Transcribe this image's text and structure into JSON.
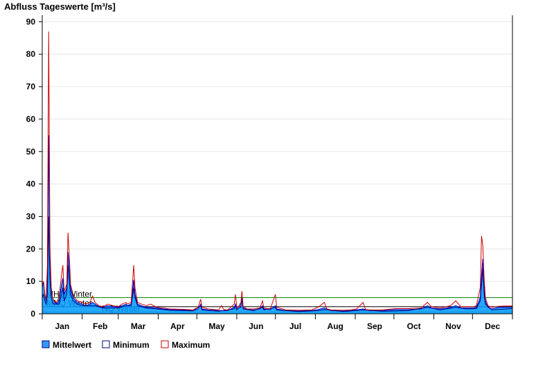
{
  "chart_data": {
    "type": "area",
    "title": "Abfluss Tageswerte [m³/s]",
    "ylim": [
      0,
      92
    ],
    "y_ticks": [
      0,
      10,
      20,
      30,
      40,
      50,
      60,
      70,
      80,
      90
    ],
    "grid": true,
    "x_range_days": [
      1,
      366
    ],
    "month_labels": [
      "Jan",
      "Feb",
      "Mar",
      "Apr",
      "May",
      "Jun",
      "Jul",
      "Aug",
      "Sep",
      "Oct",
      "Nov",
      "Dec"
    ],
    "month_start_days": [
      1,
      32,
      60,
      91,
      121,
      152,
      182,
      213,
      244,
      274,
      305,
      335
    ],
    "reference_lines": [
      {
        "label": "MHQ Winter",
        "value": 5.0,
        "color": "#008000"
      },
      {
        "label": "MNQ Winter",
        "value": 2.2,
        "color": "#000000"
      },
      {
        "label": "NQ Winter",
        "value": 0.5,
        "color": "#008000"
      }
    ],
    "series": [
      {
        "name": "Mittelwert",
        "color": "#0099ff",
        "style": "filled-area",
        "points": [
          [
            1,
            8
          ],
          [
            2,
            10
          ],
          [
            3,
            6
          ],
          [
            4,
            4
          ],
          [
            5,
            12
          ],
          [
            6,
            55
          ],
          [
            7,
            18
          ],
          [
            8,
            7
          ],
          [
            9,
            5
          ],
          [
            10,
            4
          ],
          [
            12,
            3
          ],
          [
            14,
            4
          ],
          [
            16,
            9
          ],
          [
            17,
            11
          ],
          [
            18,
            6
          ],
          [
            20,
            8
          ],
          [
            21,
            19
          ],
          [
            22,
            14
          ],
          [
            23,
            8
          ],
          [
            25,
            5
          ],
          [
            28,
            3.5
          ],
          [
            32,
            3
          ],
          [
            35,
            2.5
          ],
          [
            38,
            3
          ],
          [
            40,
            3.5
          ],
          [
            42,
            3
          ],
          [
            45,
            2.2
          ],
          [
            48,
            2
          ],
          [
            52,
            2.5
          ],
          [
            56,
            2.2
          ],
          [
            60,
            2
          ],
          [
            63,
            2.5
          ],
          [
            66,
            3
          ],
          [
            67,
            2.5
          ],
          [
            70,
            3
          ],
          [
            72,
            10.5
          ],
          [
            73,
            6
          ],
          [
            75,
            3
          ],
          [
            78,
            2.5
          ],
          [
            82,
            2
          ],
          [
            85,
            2
          ],
          [
            90,
            1.8
          ],
          [
            95,
            1.5
          ],
          [
            100,
            1.3
          ],
          [
            110,
            1.2
          ],
          [
            118,
            1
          ],
          [
            122,
            1.5
          ],
          [
            124,
            3
          ],
          [
            125,
            1.5
          ],
          [
            130,
            1.2
          ],
          [
            138,
            1
          ],
          [
            145,
            1
          ],
          [
            150,
            2
          ],
          [
            151,
            3
          ],
          [
            152,
            1.5
          ],
          [
            155,
            2
          ],
          [
            156,
            5
          ],
          [
            157,
            1.8
          ],
          [
            160,
            1.3
          ],
          [
            165,
            1.2
          ],
          [
            170,
            1.5
          ],
          [
            172,
            2.5
          ],
          [
            173,
            1.5
          ],
          [
            178,
            1.3
          ],
          [
            182,
            2.5
          ],
          [
            183,
            1.5
          ],
          [
            190,
            1
          ],
          [
            200,
            0.9
          ],
          [
            210,
            1
          ],
          [
            215,
            1.3
          ],
          [
            220,
            1.8
          ],
          [
            225,
            1
          ],
          [
            235,
            0.9
          ],
          [
            240,
            1
          ],
          [
            245,
            1.2
          ],
          [
            250,
            1.5
          ],
          [
            255,
            1
          ],
          [
            265,
            1
          ],
          [
            275,
            1.3
          ],
          [
            285,
            1.3
          ],
          [
            295,
            1.5
          ],
          [
            300,
            2.5
          ],
          [
            303,
            1.8
          ],
          [
            310,
            1.5
          ],
          [
            318,
            2
          ],
          [
            322,
            2.5
          ],
          [
            326,
            1.8
          ],
          [
            330,
            1.8
          ],
          [
            336,
            1.8
          ],
          [
            338,
            2
          ],
          [
            341,
            5
          ],
          [
            342,
            12
          ],
          [
            343,
            17
          ],
          [
            344,
            8
          ],
          [
            345,
            4
          ],
          [
            347,
            2
          ],
          [
            350,
            1.5
          ],
          [
            355,
            2
          ],
          [
            360,
            2
          ],
          [
            366,
            2
          ]
        ]
      },
      {
        "name": "Minimum",
        "color": "#000080",
        "style": "line",
        "points": [
          [
            1,
            5
          ],
          [
            2,
            6
          ],
          [
            3,
            4
          ],
          [
            4,
            3
          ],
          [
            5,
            6
          ],
          [
            6,
            30
          ],
          [
            7,
            10
          ],
          [
            8,
            5
          ],
          [
            9,
            3.5
          ],
          [
            10,
            3
          ],
          [
            14,
            3
          ],
          [
            16,
            6
          ],
          [
            17,
            8
          ],
          [
            18,
            4
          ],
          [
            20,
            6
          ],
          [
            21,
            15
          ],
          [
            22,
            10
          ],
          [
            23,
            6
          ],
          [
            25,
            4
          ],
          [
            28,
            3
          ],
          [
            32,
            2.5
          ],
          [
            38,
            2.5
          ],
          [
            42,
            2.5
          ],
          [
            48,
            1.8
          ],
          [
            56,
            1.8
          ],
          [
            60,
            1.8
          ],
          [
            66,
            2.5
          ],
          [
            70,
            2.5
          ],
          [
            72,
            8
          ],
          [
            73,
            5
          ],
          [
            75,
            2.5
          ],
          [
            82,
            1.8
          ],
          [
            90,
            1.5
          ],
          [
            100,
            1.1
          ],
          [
            118,
            0.9
          ],
          [
            124,
            2.5
          ],
          [
            125,
            1.2
          ],
          [
            138,
            0.8
          ],
          [
            150,
            1.5
          ],
          [
            151,
            2.5
          ],
          [
            152,
            1.2
          ],
          [
            156,
            4
          ],
          [
            157,
            1.5
          ],
          [
            165,
            1
          ],
          [
            172,
            2
          ],
          [
            173,
            1.2
          ],
          [
            182,
            2
          ],
          [
            183,
            1.2
          ],
          [
            200,
            0.7
          ],
          [
            215,
            1
          ],
          [
            220,
            1.3
          ],
          [
            235,
            0.7
          ],
          [
            250,
            1.2
          ],
          [
            265,
            0.8
          ],
          [
            285,
            1
          ],
          [
            300,
            2
          ],
          [
            310,
            1.2
          ],
          [
            322,
            2
          ],
          [
            330,
            1.5
          ],
          [
            338,
            1.6
          ],
          [
            341,
            4
          ],
          [
            342,
            9
          ],
          [
            343,
            14
          ],
          [
            344,
            6
          ],
          [
            345,
            3
          ],
          [
            350,
            1.2
          ],
          [
            366,
            1.6
          ]
        ]
      },
      {
        "name": "Maximum",
        "color": "#cc0000",
        "style": "line",
        "points": [
          [
            1,
            9
          ],
          [
            2,
            10
          ],
          [
            3,
            6
          ],
          [
            4,
            4.5
          ],
          [
            5,
            15
          ],
          [
            6,
            87
          ],
          [
            7,
            20
          ],
          [
            8,
            8
          ],
          [
            9,
            5
          ],
          [
            10,
            4
          ],
          [
            12,
            3.5
          ],
          [
            14,
            5
          ],
          [
            16,
            12
          ],
          [
            17,
            15
          ],
          [
            18,
            7
          ],
          [
            20,
            9
          ],
          [
            21,
            25
          ],
          [
            22,
            18
          ],
          [
            23,
            9
          ],
          [
            25,
            6
          ],
          [
            28,
            4
          ],
          [
            32,
            3.5
          ],
          [
            35,
            3
          ],
          [
            38,
            3.5
          ],
          [
            40,
            5.5
          ],
          [
            42,
            3.5
          ],
          [
            45,
            2.5
          ],
          [
            48,
            2.2
          ],
          [
            52,
            3
          ],
          [
            56,
            2.5
          ],
          [
            60,
            2.2
          ],
          [
            63,
            3
          ],
          [
            66,
            3.5
          ],
          [
            67,
            3
          ],
          [
            70,
            3.5
          ],
          [
            72,
            15
          ],
          [
            73,
            8
          ],
          [
            75,
            3.5
          ],
          [
            78,
            3
          ],
          [
            82,
            2.5
          ],
          [
            85,
            3
          ],
          [
            90,
            2
          ],
          [
            95,
            1.8
          ],
          [
            100,
            1.5
          ],
          [
            110,
            1.4
          ],
          [
            118,
            1.2
          ],
          [
            122,
            2
          ],
          [
            124,
            4.5
          ],
          [
            125,
            2
          ],
          [
            130,
            1.5
          ],
          [
            138,
            1.2
          ],
          [
            140,
            2.5
          ],
          [
            142,
            1.3
          ],
          [
            145,
            1.2
          ],
          [
            150,
            3
          ],
          [
            151,
            6
          ],
          [
            152,
            2
          ],
          [
            155,
            2.5
          ],
          [
            156,
            7
          ],
          [
            157,
            2.2
          ],
          [
            160,
            1.5
          ],
          [
            165,
            1.5
          ],
          [
            170,
            1.8
          ],
          [
            172,
            4
          ],
          [
            173,
            1.8
          ],
          [
            178,
            1.5
          ],
          [
            182,
            6
          ],
          [
            183,
            2
          ],
          [
            190,
            1.2
          ],
          [
            200,
            1.1
          ],
          [
            210,
            1.2
          ],
          [
            215,
            2
          ],
          [
            220,
            3.5
          ],
          [
            222,
            1.5
          ],
          [
            225,
            1.2
          ],
          [
            235,
            1.1
          ],
          [
            240,
            1.2
          ],
          [
            245,
            1.5
          ],
          [
            250,
            3.5
          ],
          [
            252,
            1.3
          ],
          [
            255,
            1.2
          ],
          [
            265,
            1.2
          ],
          [
            275,
            1.6
          ],
          [
            285,
            1.6
          ],
          [
            295,
            1.8
          ],
          [
            300,
            3.5
          ],
          [
            303,
            2.2
          ],
          [
            310,
            1.8
          ],
          [
            318,
            2.5
          ],
          [
            322,
            4
          ],
          [
            326,
            2.2
          ],
          [
            330,
            2.2
          ],
          [
            336,
            2.2
          ],
          [
            338,
            2.5
          ],
          [
            341,
            8
          ],
          [
            342,
            24
          ],
          [
            343,
            21
          ],
          [
            344,
            11
          ],
          [
            345,
            5
          ],
          [
            347,
            2.5
          ],
          [
            350,
            2
          ],
          [
            355,
            2.3
          ],
          [
            360,
            2.4
          ],
          [
            366,
            2.4
          ]
        ]
      }
    ],
    "legend": {
      "placement": "bottom-left",
      "items": [
        {
          "label": "Mittelwert",
          "swatch": "#3399ff",
          "border": "#000080"
        },
        {
          "label": "Minimum",
          "swatch": "#ffffff",
          "border": "#000080"
        },
        {
          "label": "Maximum",
          "swatch": "#ffffff",
          "border": "#cc0000"
        }
      ]
    }
  }
}
